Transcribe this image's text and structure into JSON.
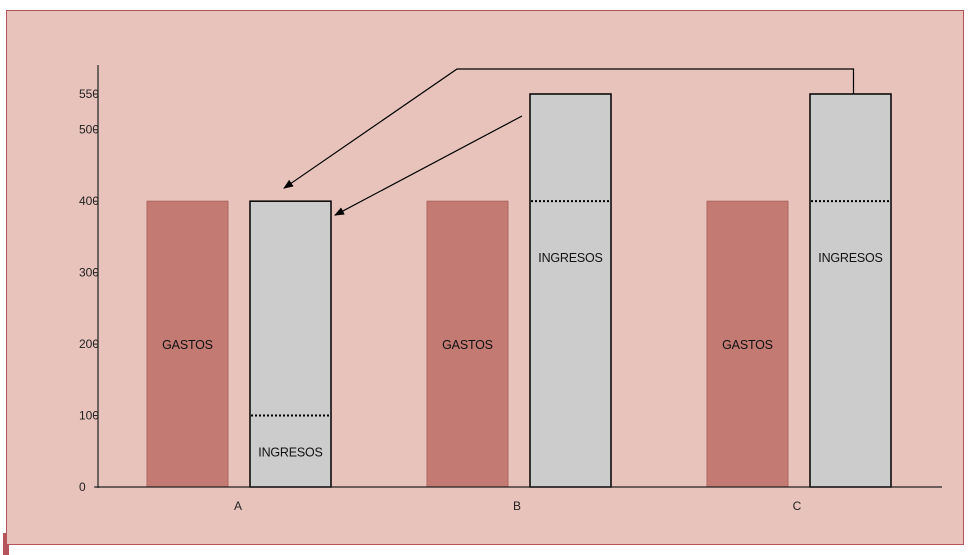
{
  "colors": {
    "background": "#e8c3bb",
    "frame": "#b5545a",
    "gastos": "#c37a72",
    "ingresos": "#cccccc",
    "axis": "#222222"
  },
  "chart_data": {
    "type": "bar",
    "title": "",
    "xlabel": "",
    "ylabel": "",
    "ylim": [
      0,
      550
    ],
    "yticks": [
      0,
      100,
      200,
      300,
      400,
      500,
      550
    ],
    "categories": [
      "A",
      "B",
      "C"
    ],
    "series": [
      {
        "name": "GASTOS",
        "values": [
          400,
          400,
          400
        ]
      },
      {
        "name": "INGRESOS",
        "values": [
          400,
          550,
          550
        ]
      }
    ],
    "bar_labels": {
      "gastos": [
        "GASTOS",
        "GASTOS",
        "GASTOS"
      ],
      "ingresos": [
        "INGRESOS",
        "INGRESOS",
        "INGRESOS"
      ]
    },
    "ingresos_dotted_levels": [
      100,
      400,
      400
    ],
    "grid": false,
    "legend": "none",
    "annotations": [
      {
        "type": "arrow",
        "from_category": "B",
        "to_category": "A",
        "description": "arrow from B ingresos bar to A ingresos bar"
      },
      {
        "type": "connector-arrow",
        "from_category": "C",
        "to_category": "A",
        "description": "line from top of C ingresos bar to A ingresos bar"
      }
    ]
  }
}
